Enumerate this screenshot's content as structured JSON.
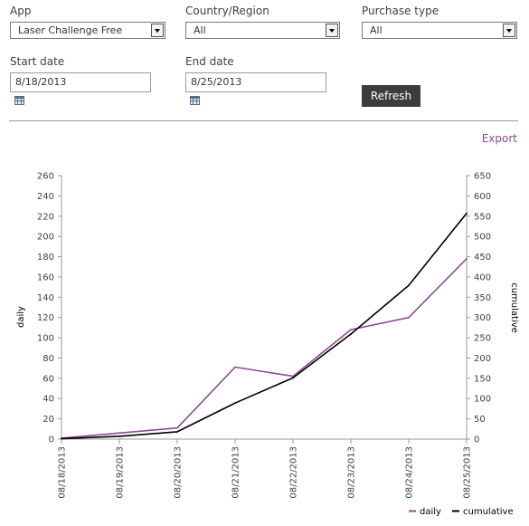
{
  "filters": {
    "app": {
      "label": "App",
      "value": "Laser Challenge Free"
    },
    "country": {
      "label": "Country/Region",
      "value": "All"
    },
    "purchase_type": {
      "label": "Purchase type",
      "value": "All"
    },
    "start_date": {
      "label": "Start date",
      "value": "8/18/2013"
    },
    "end_date": {
      "label": "End date",
      "value": "8/25/2013"
    },
    "refresh_label": "Refresh"
  },
  "export_label": "Export",
  "colors": {
    "daily": "#8c4b92",
    "cumulative": "#000000",
    "accent": "#8c4b92"
  },
  "icons": {
    "dropdown": "chevron-down-icon",
    "calendar": "calendar-icon"
  },
  "chart_data": {
    "type": "line",
    "x": [
      "08/18/2013",
      "08/19/2013",
      "08/20/2013",
      "08/21/2013",
      "08/22/2013",
      "08/23/2013",
      "08/24/2013",
      "08/25/2013"
    ],
    "series": [
      {
        "name": "daily",
        "axis": "left",
        "values": [
          1,
          6,
          11,
          71,
          62,
          108,
          120,
          178
        ]
      },
      {
        "name": "cumulative",
        "axis": "right",
        "values": [
          1,
          7,
          18,
          89,
          151,
          259,
          379,
          557
        ]
      }
    ],
    "ylabel": "daily",
    "y2label": "cumulative",
    "ylim": [
      0,
      260
    ],
    "y2lim": [
      0,
      650
    ],
    "yticks": [
      0,
      20,
      40,
      60,
      80,
      100,
      120,
      140,
      160,
      180,
      200,
      220,
      240,
      260
    ],
    "y2ticks": [
      0,
      50,
      100,
      150,
      200,
      250,
      300,
      350,
      400,
      450,
      500,
      550,
      600,
      650
    ],
    "grid": false,
    "legend": "bottom-right"
  }
}
